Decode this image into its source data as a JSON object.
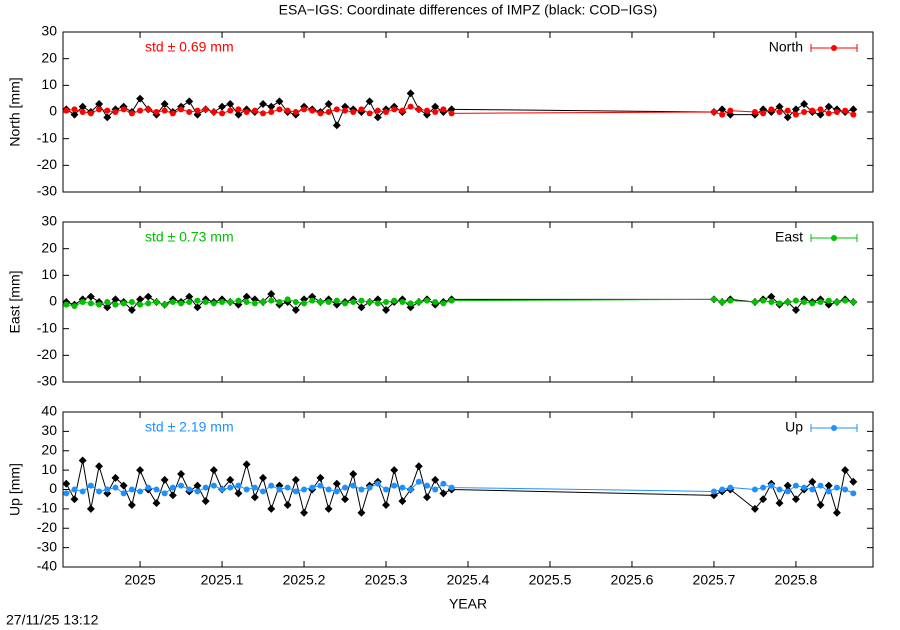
{
  "title": "ESA−IGS: Coordinate differences of IMPZ (black: COD−IGS)",
  "footer": "27/11/25 13:12",
  "chart_data": [
    {
      "type": "line",
      "ylabel": "North [mm]",
      "annotation": "std ± 0.69 mm",
      "legend": "top-right",
      "ylim": [
        -30,
        30
      ],
      "yticks": [
        -30,
        -20,
        -10,
        0,
        10,
        20,
        30
      ],
      "x": [
        2024.91,
        2024.92,
        2024.93,
        2024.94,
        2024.95,
        2024.96,
        2024.97,
        2024.98,
        2024.99,
        2025.0,
        2025.01,
        2025.02,
        2025.03,
        2025.04,
        2025.05,
        2025.06,
        2025.07,
        2025.08,
        2025.09,
        2025.1,
        2025.11,
        2025.12,
        2025.13,
        2025.14,
        2025.15,
        2025.16,
        2025.17,
        2025.18,
        2025.19,
        2025.2,
        2025.21,
        2025.22,
        2025.23,
        2025.24,
        2025.25,
        2025.26,
        2025.27,
        2025.28,
        2025.29,
        2025.3,
        2025.31,
        2025.32,
        2025.33,
        2025.34,
        2025.35,
        2025.36,
        2025.37,
        2025.38,
        2025.7,
        2025.71,
        2025.72,
        2025.75,
        2025.76,
        2025.77,
        2025.78,
        2025.79,
        2025.8,
        2025.81,
        2025.82,
        2025.83,
        2025.84,
        2025.85,
        2025.86,
        2025.87
      ],
      "series": [
        {
          "color": "#000000",
          "values": [
            1,
            -1,
            2,
            0,
            3,
            -2,
            1,
            2,
            0,
            5,
            1,
            -1,
            3,
            0,
            2,
            4,
            -1,
            1,
            0,
            2,
            3,
            -1,
            1,
            0,
            3,
            2,
            4,
            0,
            -1,
            2,
            1,
            0,
            3,
            -5,
            2,
            1,
            0,
            4,
            -2,
            1,
            2,
            0,
            7,
            1,
            -1,
            2,
            0,
            1,
            0,
            1,
            -1,
            -1,
            1,
            0,
            2,
            -2,
            1,
            3,
            0,
            -1,
            2,
            1,
            0,
            1
          ]
        },
        {
          "name": "North",
          "color": "#ff0000",
          "values": [
            0.5,
            1,
            0,
            -0.5,
            1,
            0.5,
            0,
            1,
            -0.5,
            0.5,
            1,
            0,
            0.5,
            -0.5,
            1,
            0,
            0.5,
            1,
            0,
            -0.5,
            0.5,
            1,
            0,
            0.5,
            -0.5,
            0,
            1,
            0.5,
            0,
            1,
            0.5,
            -0.5,
            0,
            1,
            0.5,
            0,
            1,
            -0.5,
            0.5,
            0,
            1,
            0.5,
            2,
            1,
            0.5,
            0,
            1,
            -0.5,
            0,
            -1,
            0.5,
            0,
            -0.5,
            1,
            0,
            0.5,
            -1,
            0,
            0.5,
            1,
            -0.5,
            0,
            0.5,
            -1
          ]
        }
      ]
    },
    {
      "type": "line",
      "ylabel": "East [mm]",
      "annotation": "std ± 0.73 mm",
      "legend": "top-right",
      "ylim": [
        -30,
        30
      ],
      "yticks": [
        -30,
        -20,
        -10,
        0,
        10,
        20,
        30
      ],
      "x": [
        2024.91,
        2024.92,
        2024.93,
        2024.94,
        2024.95,
        2024.96,
        2024.97,
        2024.98,
        2024.99,
        2025.0,
        2025.01,
        2025.02,
        2025.03,
        2025.04,
        2025.05,
        2025.06,
        2025.07,
        2025.08,
        2025.09,
        2025.1,
        2025.11,
        2025.12,
        2025.13,
        2025.14,
        2025.15,
        2025.16,
        2025.17,
        2025.18,
        2025.19,
        2025.2,
        2025.21,
        2025.22,
        2025.23,
        2025.24,
        2025.25,
        2025.26,
        2025.27,
        2025.28,
        2025.29,
        2025.3,
        2025.31,
        2025.32,
        2025.33,
        2025.34,
        2025.35,
        2025.36,
        2025.37,
        2025.38,
        2025.7,
        2025.71,
        2025.72,
        2025.75,
        2025.76,
        2025.77,
        2025.78,
        2025.79,
        2025.8,
        2025.81,
        2025.82,
        2025.83,
        2025.84,
        2025.85,
        2025.86,
        2025.87
      ],
      "series": [
        {
          "color": "#000000",
          "values": [
            0,
            -1,
            1,
            2,
            0,
            -2,
            1,
            0,
            -3,
            1,
            2,
            0,
            -1,
            1,
            0,
            2,
            -2,
            1,
            0,
            1,
            0,
            -1,
            2,
            1,
            0,
            3,
            -1,
            0,
            -3,
            1,
            2,
            0,
            1,
            -1,
            0,
            1,
            -2,
            0,
            1,
            -3,
            0,
            1,
            -2,
            0,
            1,
            -1,
            0,
            1,
            1,
            0,
            1,
            0,
            1,
            2,
            -1,
            0,
            -3,
            1,
            0,
            1,
            -1,
            0,
            1,
            0
          ]
        },
        {
          "name": "East",
          "color": "#00c000",
          "values": [
            -1,
            -1.5,
            0,
            -0.5,
            -1,
            0,
            -1,
            -0.5,
            0,
            -1,
            -0.5,
            0,
            -1,
            0,
            -0.5,
            0,
            0.5,
            0,
            -0.5,
            0,
            0,
            0.5,
            0,
            -0.5,
            0,
            0.5,
            0,
            1,
            0,
            -0.5,
            0.5,
            0,
            0,
            0.5,
            -0.5,
            0,
            0.5,
            0,
            -0.5,
            0,
            0.5,
            0,
            -0.5,
            0,
            0.5,
            0,
            -0.5,
            0.5,
            1,
            0,
            0.5,
            0,
            0.5,
            0,
            -0.5,
            0,
            0.5,
            0,
            -0.5,
            0,
            0.5,
            0,
            0.5,
            0
          ]
        }
      ]
    },
    {
      "type": "line",
      "ylabel": "Up [mm]",
      "annotation": "std ± 2.19 mm",
      "legend": "top-right",
      "xlabel": "YEAR",
      "xlim": [
        2024.906,
        2025.894
      ],
      "xticks": [
        2025,
        2025.1,
        2025.2,
        2025.3,
        2025.4,
        2025.5,
        2025.6,
        2025.7,
        2025.8
      ],
      "ylim": [
        -40,
        40
      ],
      "yticks": [
        -40,
        -30,
        -20,
        -10,
        0,
        10,
        20,
        30,
        40
      ],
      "x": [
        2024.91,
        2024.92,
        2024.93,
        2024.94,
        2024.95,
        2024.96,
        2024.97,
        2024.98,
        2024.99,
        2025.0,
        2025.01,
        2025.02,
        2025.03,
        2025.04,
        2025.05,
        2025.06,
        2025.07,
        2025.08,
        2025.09,
        2025.1,
        2025.11,
        2025.12,
        2025.13,
        2025.14,
        2025.15,
        2025.16,
        2025.17,
        2025.18,
        2025.19,
        2025.2,
        2025.21,
        2025.22,
        2025.23,
        2025.24,
        2025.25,
        2025.26,
        2025.27,
        2025.28,
        2025.29,
        2025.3,
        2025.31,
        2025.32,
        2025.33,
        2025.34,
        2025.35,
        2025.36,
        2025.37,
        2025.38,
        2025.7,
        2025.71,
        2025.72,
        2025.75,
        2025.76,
        2025.77,
        2025.78,
        2025.79,
        2025.8,
        2025.81,
        2025.82,
        2025.83,
        2025.84,
        2025.85,
        2025.86,
        2025.87
      ],
      "series": [
        {
          "color": "#000000",
          "values": [
            3,
            -5,
            15,
            -10,
            12,
            -2,
            6,
            2,
            -8,
            10,
            0,
            -7,
            5,
            -3,
            8,
            -1,
            2,
            -6,
            10,
            0,
            5,
            -2,
            13,
            -4,
            6,
            -10,
            2,
            -8,
            5,
            -12,
            0,
            6,
            -10,
            3,
            -5,
            8,
            -12,
            2,
            4,
            -8,
            10,
            -6,
            0,
            12,
            -4,
            5,
            -2,
            0,
            -3,
            -1,
            0,
            -10,
            -5,
            3,
            -7,
            2,
            -5,
            0,
            4,
            -8,
            2,
            -12,
            10,
            4
          ]
        },
        {
          "name": "Up",
          "color": "#1e90ff",
          "values": [
            -2,
            0,
            -1,
            2,
            -1,
            0,
            1,
            -2,
            0,
            -1,
            1,
            0,
            -2,
            1,
            2,
            0,
            -1,
            1,
            2,
            0,
            1,
            2,
            0,
            1,
            -1,
            2,
            0,
            1,
            -1,
            0,
            1,
            2,
            0,
            -1,
            1,
            2,
            0,
            1,
            3,
            0,
            2,
            1,
            0,
            4,
            2,
            0,
            3,
            1,
            -1,
            0,
            1,
            0,
            1,
            2,
            0,
            -1,
            2,
            1,
            0,
            2,
            -1,
            1,
            0,
            -2
          ]
        }
      ]
    }
  ]
}
